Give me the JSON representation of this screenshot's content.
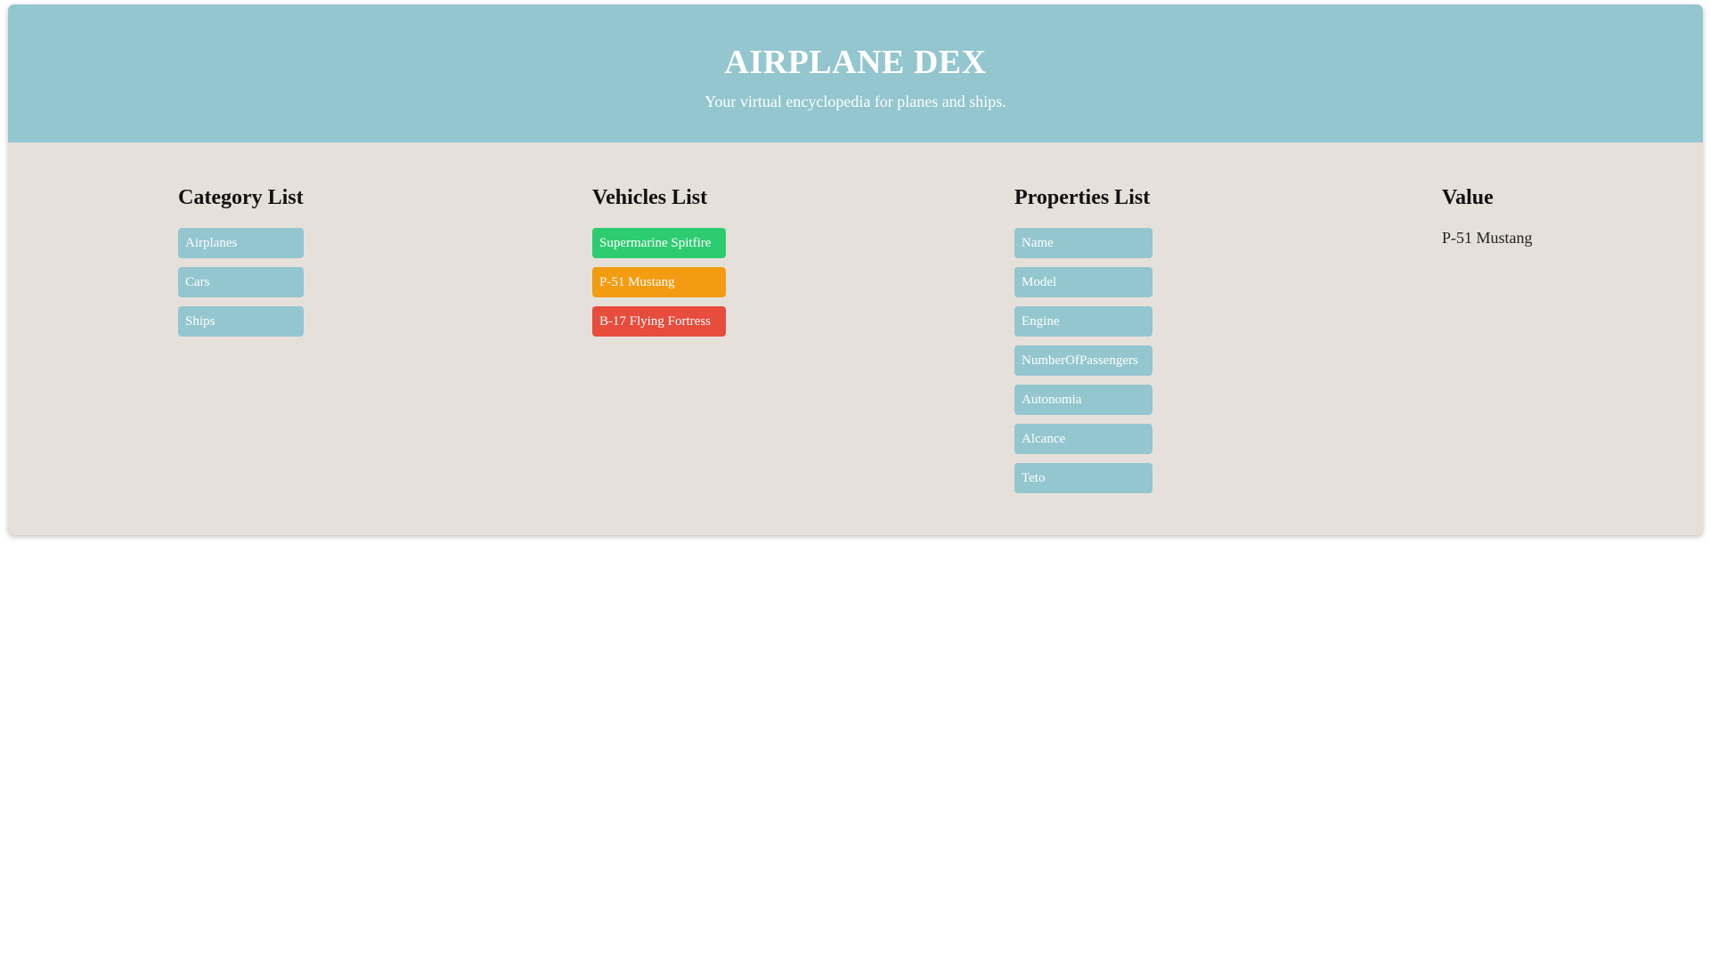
{
  "header": {
    "title": "AIRPLANE DEX",
    "subtitle": "Your virtual encyclopedia for planes and ships."
  },
  "categories": {
    "heading": "Category List",
    "items": [
      {
        "label": "Airplanes"
      },
      {
        "label": "Cars"
      },
      {
        "label": "Ships"
      }
    ]
  },
  "vehicles": {
    "heading": "Vehicles List",
    "items": [
      {
        "label": "Supermarine Spitfire",
        "color": "#2ecc71"
      },
      {
        "label": "P-51 Mustang",
        "color": "#f39c12"
      },
      {
        "label": "B-17 Flying Fortress",
        "color": "#e74c3c"
      }
    ]
  },
  "properties": {
    "heading": "Properties List",
    "items": [
      {
        "label": "Name"
      },
      {
        "label": "Model"
      },
      {
        "label": "Engine"
      },
      {
        "label": "NumberOfPassengers"
      },
      {
        "label": "Autonomia"
      },
      {
        "label": "Alcance"
      },
      {
        "label": "Teto"
      }
    ]
  },
  "value": {
    "heading": "Value",
    "text": "P-51 Mustang"
  },
  "theme": {
    "accent": "#93c6cf",
    "panel": "#e6e0db"
  }
}
